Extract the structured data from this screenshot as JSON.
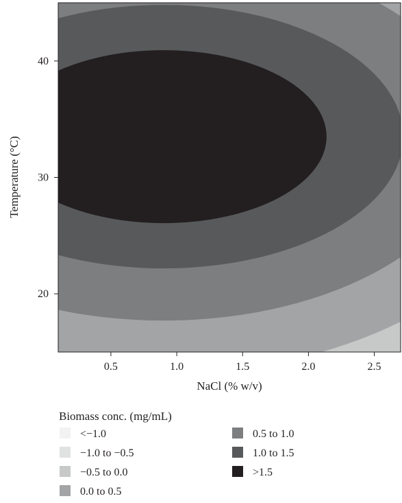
{
  "chart_data": {
    "type": "contour",
    "xlabel": "NaCl (% w/v)",
    "ylabel": "Temperature (°C)",
    "xlim": [
      0.1,
      2.7
    ],
    "ylim": [
      15,
      45
    ],
    "x_ticks": [
      "0.5",
      "1.0",
      "1.5",
      "2.0",
      "2.5"
    ],
    "y_ticks": [
      "20",
      "30",
      "40"
    ],
    "response_peak": {
      "nacl": 0.9,
      "temperature": 33.5
    },
    "legend": {
      "title": "Biomass conc. (mg/mL)",
      "levels": [
        {
          "label": "<−1.0",
          "color": "#f2f2f2"
        },
        {
          "label": "−1.0 to −0.5",
          "color": "#e0e1e1"
        },
        {
          "label": "−0.5 to 0.0",
          "color": "#c7c8c8"
        },
        {
          "label": "0.0 to 0.5",
          "color": "#a3a4a5"
        },
        {
          "label": "0.5 to 1.0",
          "color": "#7d7e7f"
        },
        {
          "label": "1.0 to 1.5",
          "color": "#58595b"
        },
        {
          "label": ">1.5",
          "color": "#231f20"
        }
      ]
    }
  }
}
